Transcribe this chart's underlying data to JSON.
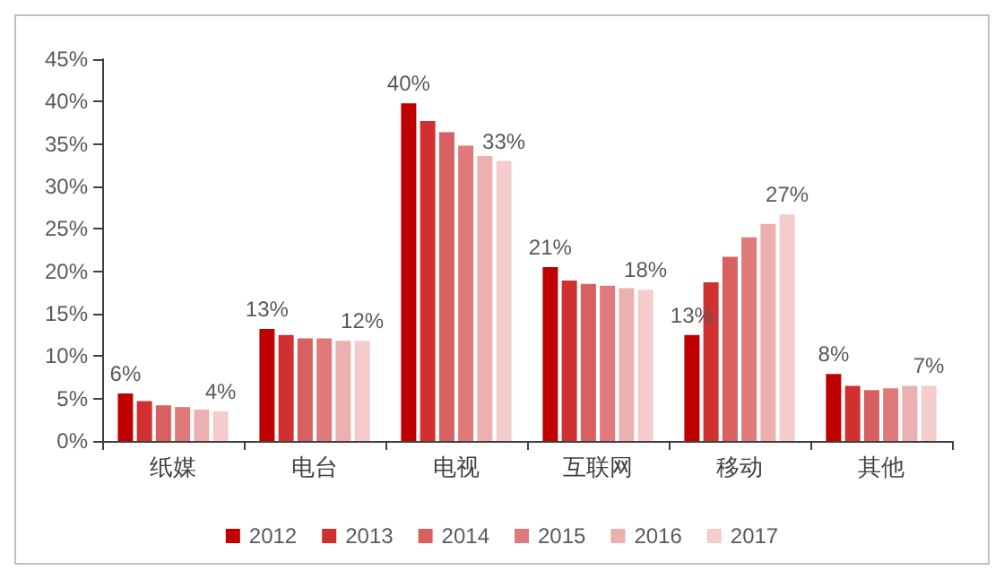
{
  "chart_data": {
    "type": "bar",
    "categories": [
      "纸媒",
      "电台",
      "电视",
      "互联网",
      "移动",
      "其他"
    ],
    "series": [
      {
        "name": "2012",
        "color": "#c00000",
        "values": [
          5.6,
          13.2,
          39.8,
          20.5,
          12.5,
          7.9
        ],
        "value_labels": [
          "6%",
          "13%",
          "40%",
          "21%",
          "13%",
          "8%"
        ]
      },
      {
        "name": "2013",
        "color": "#d03030",
        "values": [
          4.7,
          12.5,
          37.7,
          18.9,
          18.7,
          6.5
        ]
      },
      {
        "name": "2014",
        "color": "#d96060",
        "values": [
          4.2,
          12.1,
          36.4,
          18.5,
          21.7,
          6.0
        ]
      },
      {
        "name": "2015",
        "color": "#e07a7a",
        "values": [
          4.0,
          12.1,
          34.8,
          18.3,
          24.0,
          6.2
        ]
      },
      {
        "name": "2016",
        "color": "#ecb0b0",
        "values": [
          3.7,
          11.8,
          33.6,
          18.0,
          25.6,
          6.5
        ]
      },
      {
        "name": "2017",
        "color": "#f4cccc",
        "values": [
          3.5,
          11.8,
          33.0,
          17.8,
          26.7,
          6.5
        ],
        "value_labels": [
          "4%",
          "12%",
          "33%",
          "18%",
          "27%",
          "7%"
        ]
      }
    ],
    "ylim": [
      0,
      45
    ],
    "yticks": [
      {
        "value": 0,
        "label": "0%"
      },
      {
        "value": 5,
        "label": "5%"
      },
      {
        "value": 10,
        "label": "10%"
      },
      {
        "value": 15,
        "label": "15%"
      },
      {
        "value": 20,
        "label": "20%"
      },
      {
        "value": 25,
        "label": "25%"
      },
      {
        "value": 30,
        "label": "30%"
      },
      {
        "value": 35,
        "label": "35%"
      },
      {
        "value": 40,
        "label": "40%"
      },
      {
        "value": 45,
        "label": "45%"
      }
    ],
    "grid": false,
    "legend": "bottom"
  }
}
